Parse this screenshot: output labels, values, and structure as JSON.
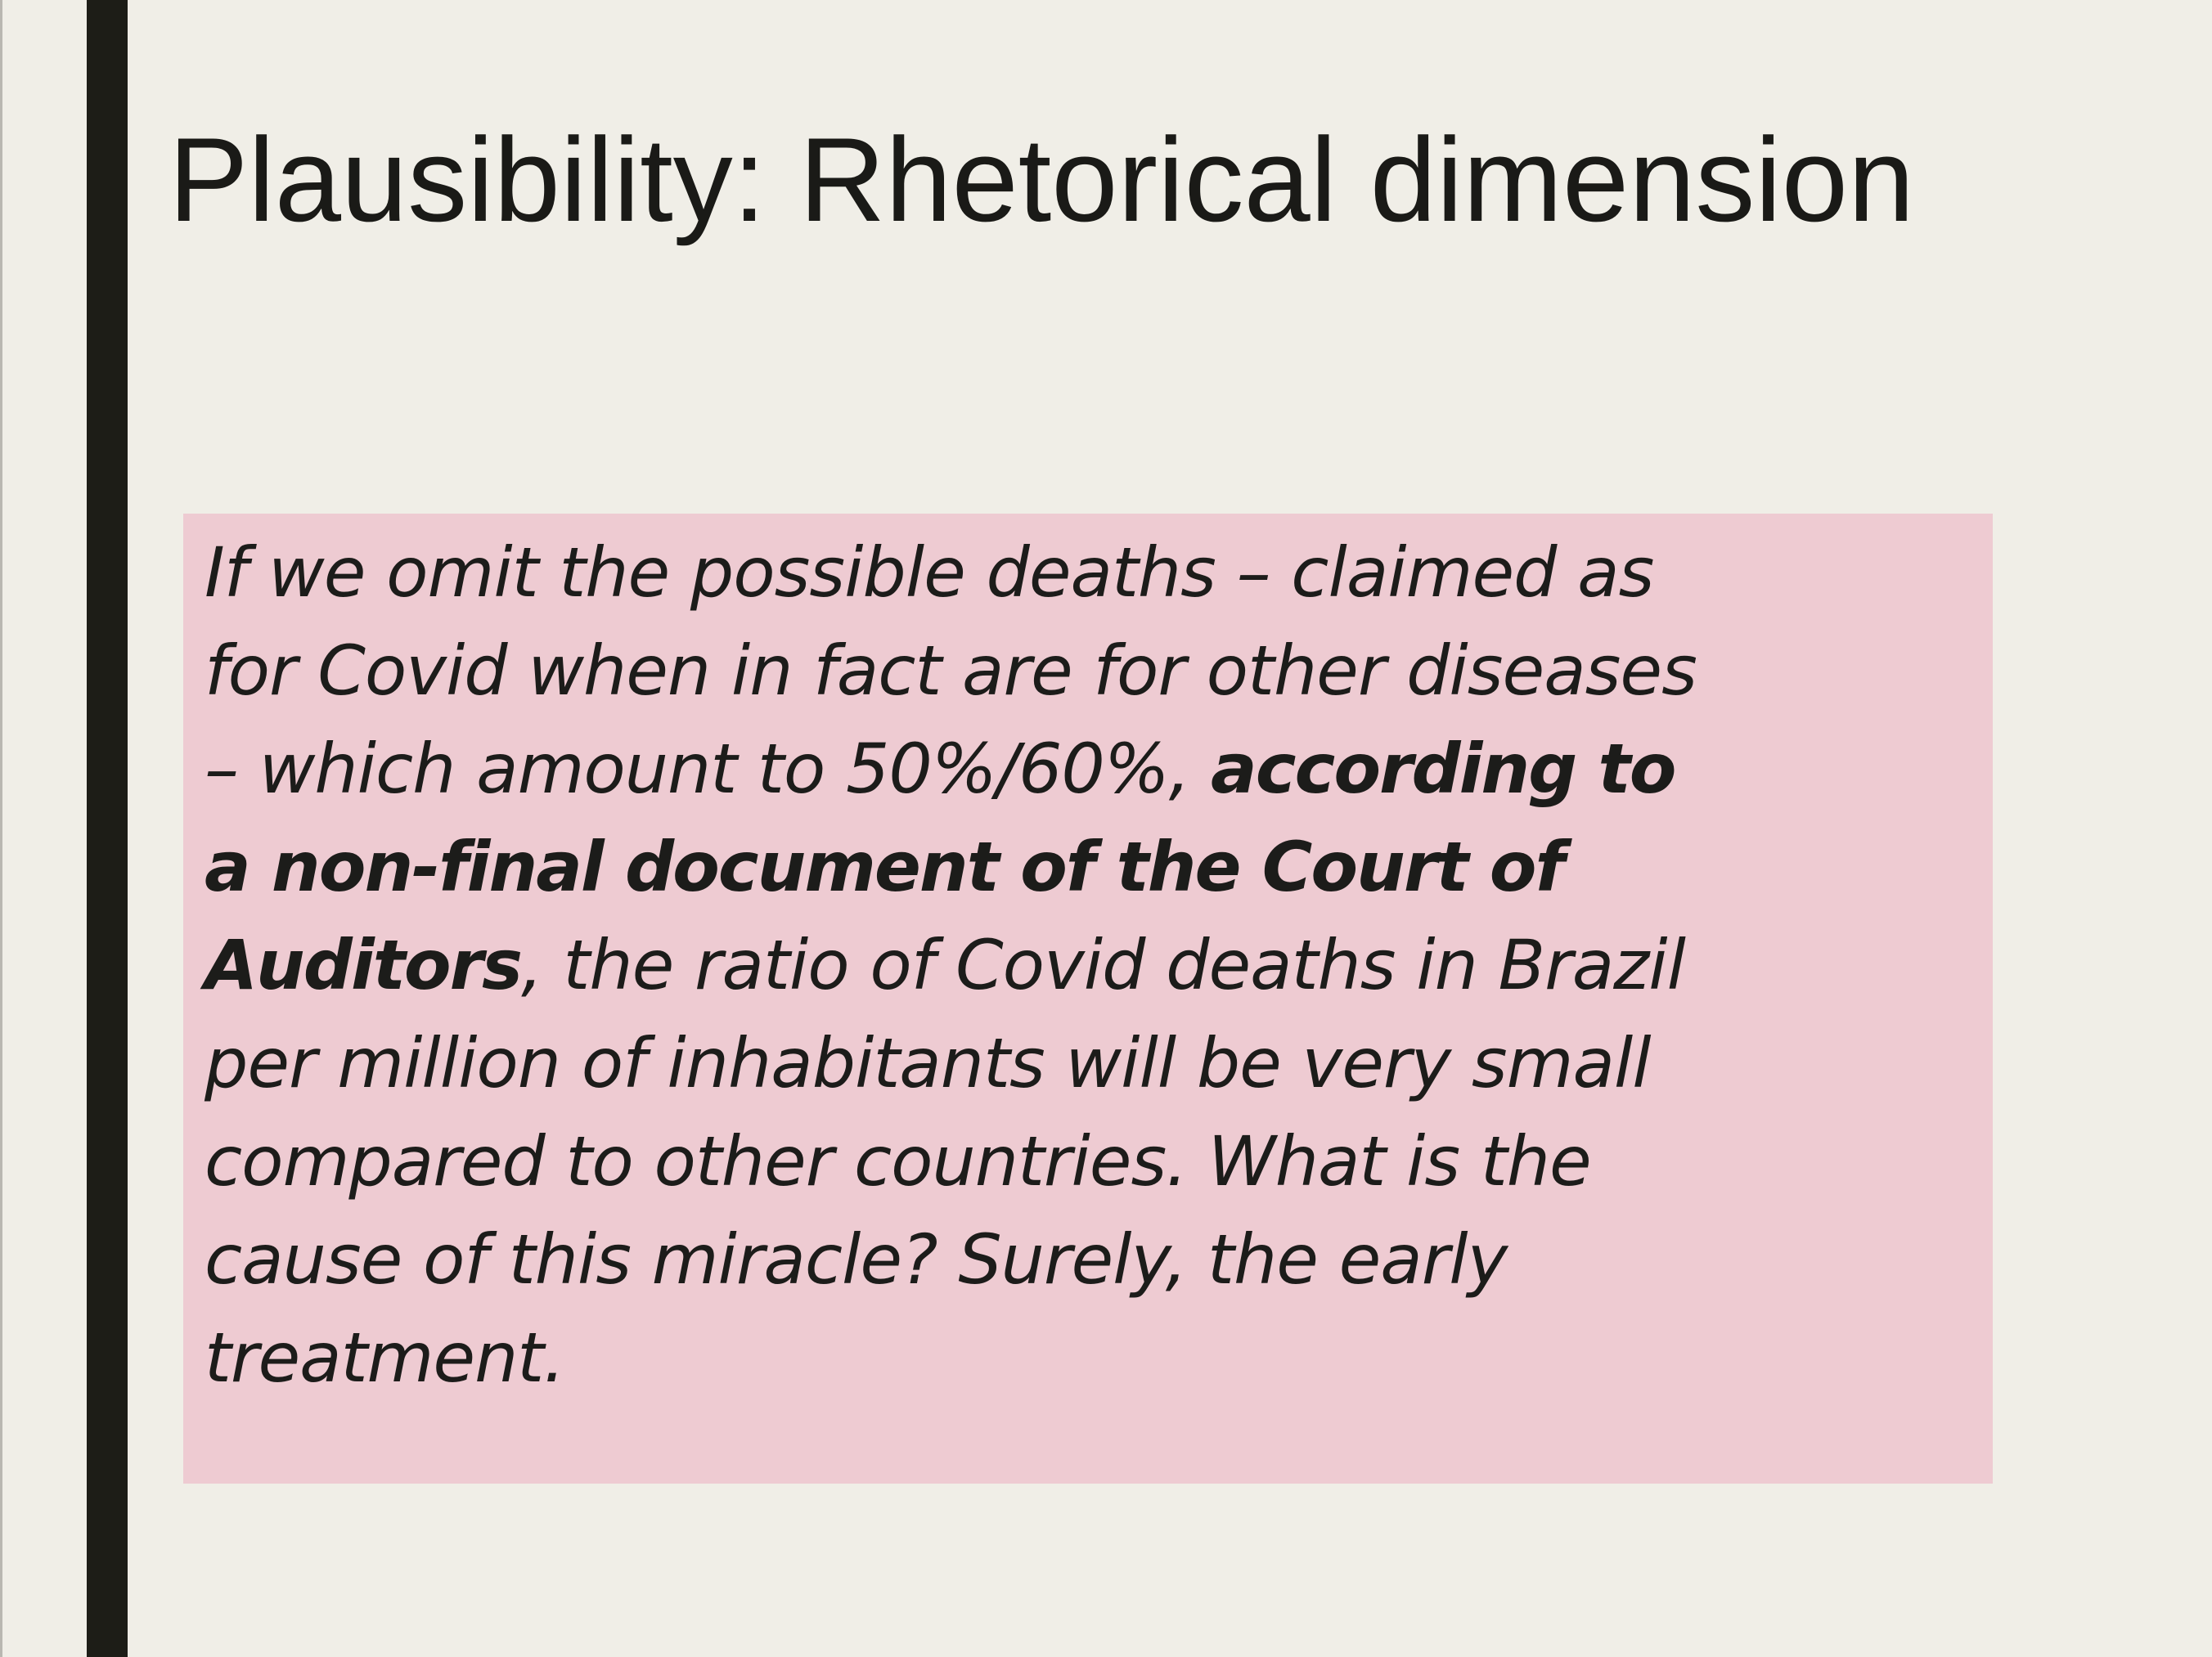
{
  "slide": {
    "title": "Plausibility: Rhetorical dimension",
    "quote": {
      "lines": [
        {
          "segments": [
            {
              "text": "If we omit the possible deaths – claimed as",
              "bold": false
            }
          ]
        },
        {
          "segments": [
            {
              "text": "for Covid when in fact are for other diseases",
              "bold": false
            }
          ]
        },
        {
          "segments": [
            {
              "text": "– which amount to 50%/60%, ",
              "bold": false
            },
            {
              "text": "according to",
              "bold": true
            }
          ]
        },
        {
          "segments": [
            {
              "text": "a non-final document of the Court of",
              "bold": true
            }
          ]
        },
        {
          "segments": [
            {
              "text": "Auditors",
              "bold": true
            },
            {
              "text": ", the ratio of Covid deaths in Brazil",
              "bold": false
            }
          ]
        },
        {
          "segments": [
            {
              "text": "per million of inhabitants will be very small",
              "bold": false
            }
          ]
        },
        {
          "segments": [
            {
              "text": "compared to other countries. What is the",
              "bold": false
            }
          ]
        },
        {
          "segments": [
            {
              "text": "cause of this miracle? Surely, the early",
              "bold": false
            }
          ]
        },
        {
          "segments": [
            {
              "text": "treatment.",
              "bold": false
            }
          ]
        }
      ]
    }
  },
  "colors": {
    "background": "#f0eee7",
    "accent_bar": "#1d1d17",
    "quote_box": "#eecbd2",
    "text": "#1a1a17"
  }
}
